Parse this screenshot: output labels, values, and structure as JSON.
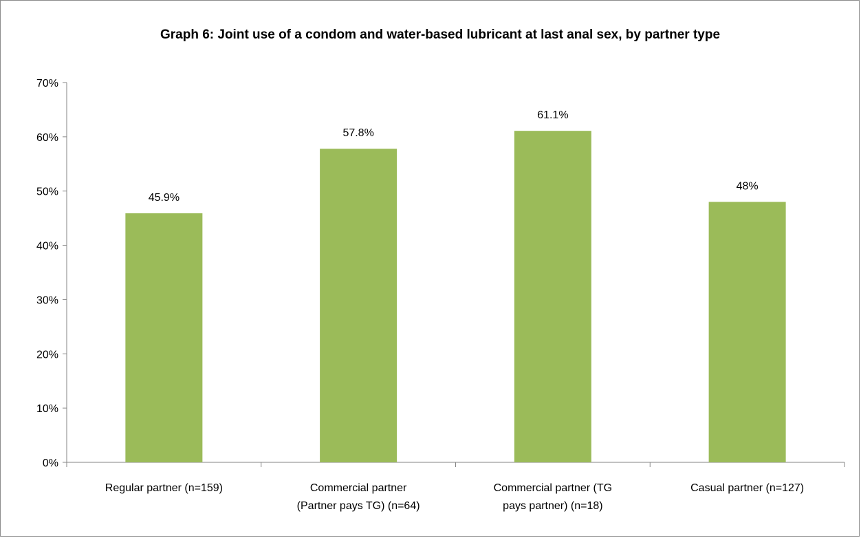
{
  "chart_data": {
    "type": "bar",
    "title": "Graph 6: Joint use of a condom and water-based lubricant at last anal sex, by partner type",
    "categories": [
      [
        "Regular partner (n=159)"
      ],
      [
        "Commercial partner",
        "(Partner pays TG) (n=64)"
      ],
      [
        "Commercial partner (TG",
        "pays partner) (n=18)"
      ],
      [
        "Casual partner (n=127)"
      ]
    ],
    "values": [
      45.9,
      57.8,
      61.1,
      48
    ],
    "data_labels": [
      "45.9%",
      "57.8%",
      "61.1%",
      "48%"
    ],
    "y_ticks": [
      "0%",
      "10%",
      "20%",
      "30%",
      "40%",
      "50%",
      "60%",
      "70%"
    ],
    "ylim": [
      0,
      70
    ],
    "bar_color": "#9bbb59",
    "grid": false,
    "legend": "none"
  }
}
